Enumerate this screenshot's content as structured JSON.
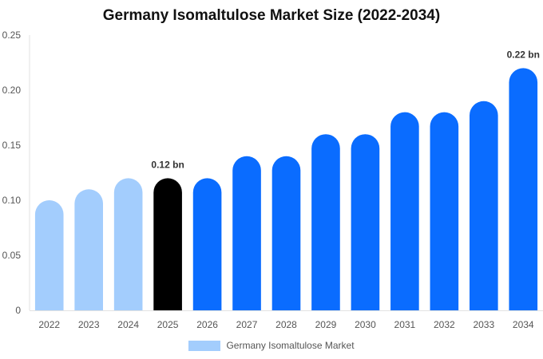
{
  "chart_data": {
    "type": "bar",
    "title": "Germany Isomaltulose Market Size (2022-2034)",
    "categories": [
      "2022",
      "2023",
      "2024",
      "2025",
      "2026",
      "2027",
      "2028",
      "2029",
      "2030",
      "2031",
      "2032",
      "2033",
      "2034"
    ],
    "series": [
      {
        "name": "Germany Isomaltulose Market",
        "values": [
          0.1,
          0.11,
          0.12,
          0.12,
          0.12,
          0.14,
          0.14,
          0.16,
          0.16,
          0.18,
          0.18,
          0.19,
          0.22
        ]
      }
    ],
    "bar_colors": [
      "#a3cdfd",
      "#a3cdfd",
      "#a3cdfd",
      "#000000",
      "#0a6cff",
      "#0a6cff",
      "#0a6cff",
      "#0a6cff",
      "#0a6cff",
      "#0a6cff",
      "#0a6cff",
      "#0a6cff",
      "#0a6cff"
    ],
    "data_labels": [
      {
        "category": "2025",
        "text": "0.12 bn"
      },
      {
        "category": "2034",
        "text": "0.22 bn"
      }
    ],
    "yticks": [
      "0",
      "0.05",
      "0.10",
      "0.15",
      "0.20",
      "0.25"
    ],
    "ylim": [
      0,
      0.25
    ],
    "xlabel": "",
    "ylabel": "",
    "grid": false,
    "legend_position": "bottom",
    "legend_color": "#a3cdfd"
  }
}
